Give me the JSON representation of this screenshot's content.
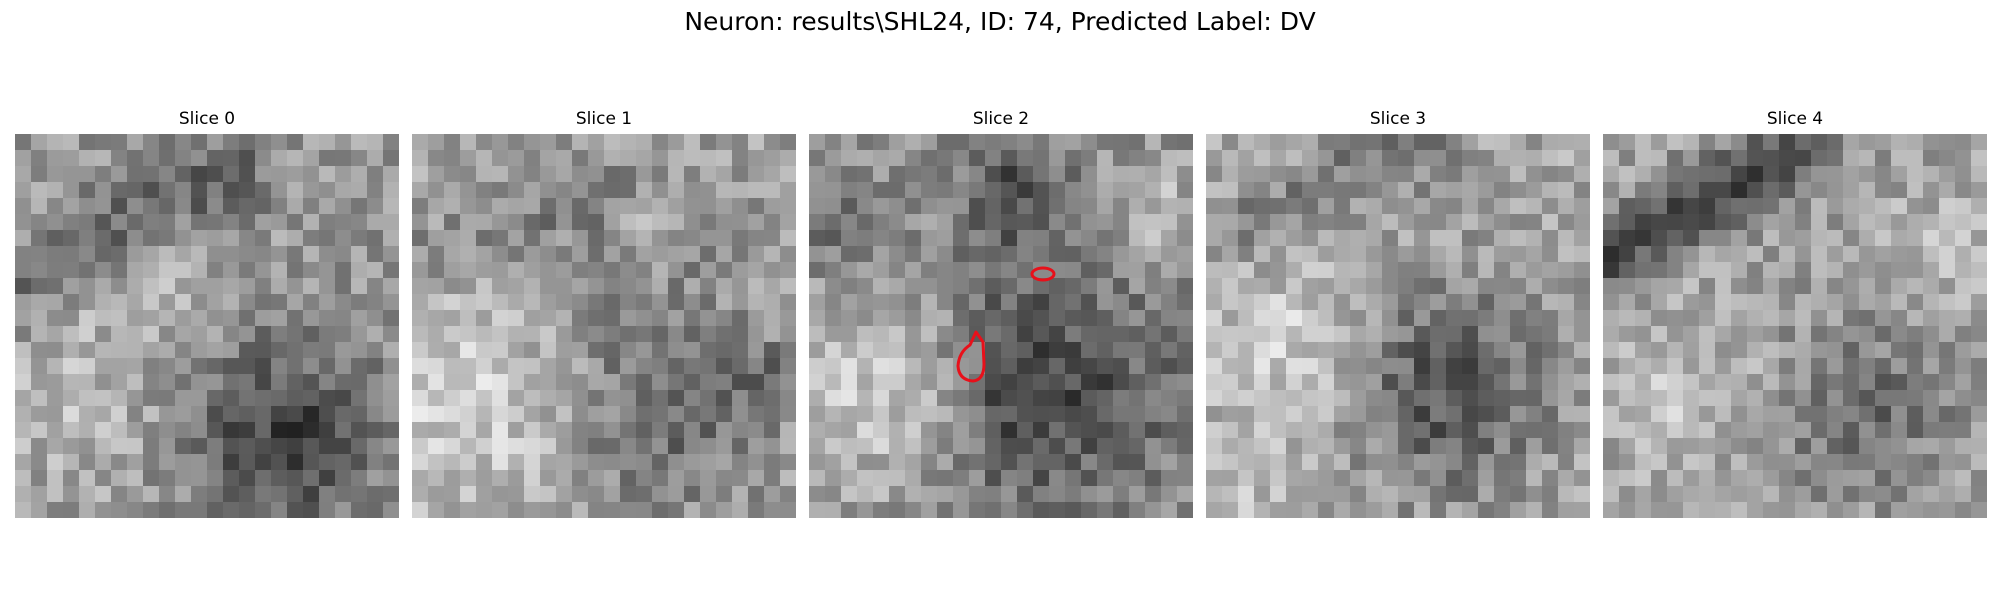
{
  "title": "Neuron: results\\SHL24, ID: 74, Predicted Label: DV",
  "colors": {
    "background": "#ffffff",
    "contour": "#e8101a",
    "colormap": "gray"
  },
  "grid_size": 24,
  "panels": [
    {
      "title": "Slice 0"
    },
    {
      "title": "Slice 1"
    },
    {
      "title": "Slice 2"
    },
    {
      "title": "Slice 3"
    },
    {
      "title": "Slice 4"
    }
  ]
}
